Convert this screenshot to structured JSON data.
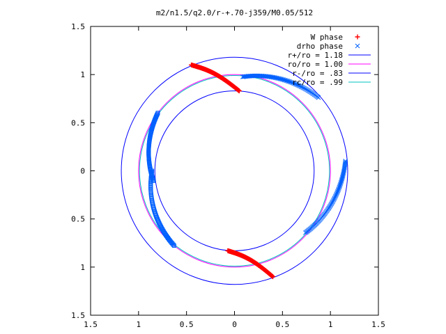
{
  "chart_data": {
    "type": "scatter",
    "title": "m2/n1.5/q2.0/r-+.70-j359/M0.05/512",
    "xlabel": "",
    "ylabel": "",
    "xlim": [
      -1.5,
      1.5
    ],
    "ylim": [
      -1.5,
      1.5
    ],
    "xticks": [
      -1.5,
      -1,
      -0.5,
      0,
      0.5,
      1,
      1.5
    ],
    "xtick_labels": [
      "1.5",
      "1",
      "0.5",
      "0",
      "0.5",
      "1",
      "1.5"
    ],
    "yticks": [
      1.5,
      1,
      0.5,
      0,
      -0.5,
      -1,
      -1.5
    ],
    "ytick_labels": [
      "1.5",
      "1",
      "0.5",
      "0",
      "0.5",
      "1",
      "1.5"
    ],
    "grid": false,
    "legend_position": "top-right",
    "circles": [
      {
        "name": "r+/ro = 1.18",
        "radius": 1.18,
        "color": "#0000ff"
      },
      {
        "name": "ro/ro = 1.00",
        "radius": 1.0,
        "color": "#ff00ff"
      },
      {
        "name": "r-/ro = .83",
        "radius": 0.83,
        "color": "#0000ff"
      },
      {
        "name": "rc/ro = .99",
        "radius": 0.99,
        "color": "#00c0c0"
      }
    ],
    "series": [
      {
        "name": "W phase",
        "marker": "+",
        "color": "#ff0000",
        "arms": [
          {
            "start": [
              -0.45,
              1.1
            ],
            "end": [
              0.05,
              0.83
            ],
            "bend": 0.04
          },
          {
            "start": [
              -0.07,
              -0.83
            ],
            "end": [
              0.4,
              -1.1
            ],
            "bend": 0.04
          }
        ]
      },
      {
        "name": "drho phase",
        "marker": "x",
        "color": "#0060ff",
        "note_markers": "points near left arc drawn as squares",
        "arcs": [
          {
            "radius_from": 0.98,
            "radius_to": 1.16,
            "angle_from": 41,
            "angle_to": 85,
            "flip": true
          },
          {
            "radius_from": 0.98,
            "radius_to": 1.16,
            "angle_from": -41,
            "angle_to": 5,
            "flip": false
          },
          {
            "radius_from": 0.85,
            "radius_to": 1.0,
            "angle_from": 143,
            "angle_to": 187,
            "flip": true
          },
          {
            "radius_from": 0.86,
            "radius_to": 1.0,
            "angle_from": 180,
            "angle_to": 231,
            "flip": false
          }
        ]
      }
    ]
  }
}
